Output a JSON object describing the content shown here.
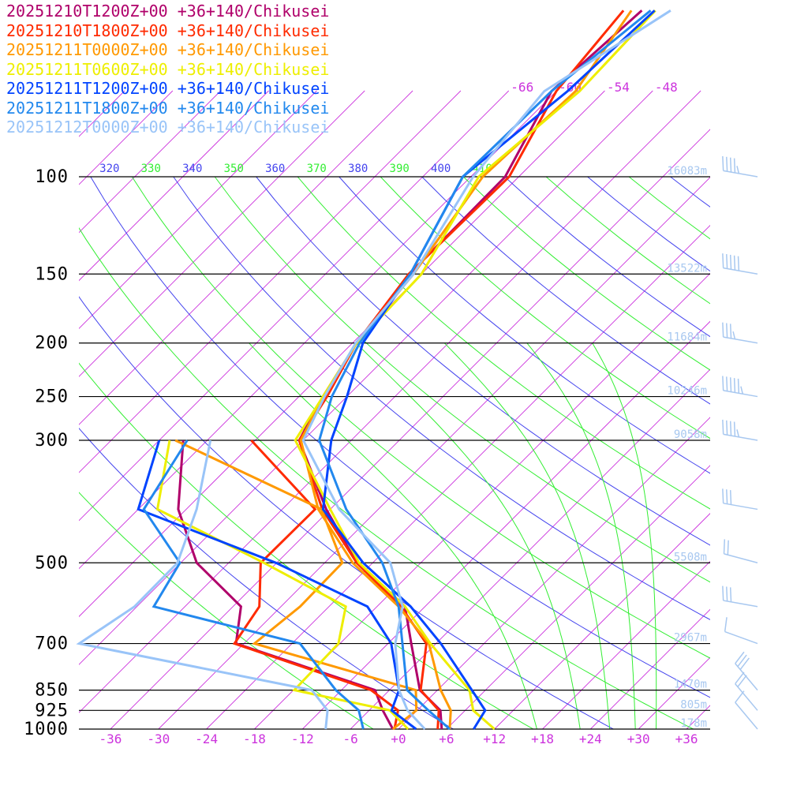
{
  "chart_data": {
    "type": "line",
    "subtype": "skew-T log-p sounding",
    "pressure_levels_hpa": [
      1000,
      925,
      850,
      700,
      600,
      500,
      400,
      300,
      250,
      200,
      150,
      100,
      70,
      50
    ],
    "y_axis_ticks": [
      "100",
      "150",
      "200",
      "250",
      "300",
      "500",
      "700",
      "850",
      "925",
      "1000"
    ],
    "y_axis_tick_values": [
      100,
      150,
      200,
      250,
      300,
      500,
      700,
      850,
      925,
      1000
    ],
    "x_axis_ticks": [
      "-36",
      "-30",
      "-24",
      "-18",
      "-12",
      "-6",
      "+0",
      "+6",
      "+12",
      "+18",
      "+24",
      "+30",
      "+36"
    ],
    "x_axis_tick_values": [
      -36,
      -30,
      -24,
      -18,
      -12,
      -6,
      0,
      6,
      12,
      18,
      24,
      30,
      36
    ],
    "top_isotherm_labels": [
      "-66",
      "-60",
      "-54",
      "-48"
    ],
    "top_isotherm_values": [
      -66,
      -60,
      -54,
      -48
    ],
    "theta_labels": [
      "320",
      "330",
      "340",
      "350",
      "360",
      "370",
      "380",
      "390",
      "400",
      "410"
    ],
    "theta_values": [
      320,
      330,
      340,
      350,
      360,
      370,
      380,
      390,
      400,
      410
    ],
    "heights": [
      {
        "p": 100,
        "label": "16083m"
      },
      {
        "p": 150,
        "label": "13522m"
      },
      {
        "p": 200,
        "label": "11684m"
      },
      {
        "p": 250,
        "label": "10246m"
      },
      {
        "p": 300,
        "label": "9058m"
      },
      {
        "p": 500,
        "label": "5508m"
      },
      {
        "p": 700,
        "label": "2967m"
      },
      {
        "p": 850,
        "label": "1470m"
      },
      {
        "p": 925,
        "label": "805m"
      },
      {
        "p": 1000,
        "label": "178m"
      }
    ],
    "winds": [
      {
        "p": 100,
        "dir": 280,
        "kt": 45
      },
      {
        "p": 150,
        "dir": 280,
        "kt": 50
      },
      {
        "p": 200,
        "dir": 280,
        "kt": 35
      },
      {
        "p": 250,
        "dir": 280,
        "kt": 55
      },
      {
        "p": 300,
        "dir": 280,
        "kt": 45
      },
      {
        "p": 400,
        "dir": 280,
        "kt": 30
      },
      {
        "p": 500,
        "dir": 285,
        "kt": 20
      },
      {
        "p": 600,
        "dir": 280,
        "kt": 30
      },
      {
        "p": 700,
        "dir": 290,
        "kt": 10
      },
      {
        "p": 850,
        "dir": 320,
        "kt": 30
      },
      {
        "p": 925,
        "dir": 320,
        "kt": 20
      },
      {
        "p": 1000,
        "dir": 320,
        "kt": 10
      }
    ],
    "colors": {
      "isotherm": "#cc33dd",
      "theta_a": "#4444ee",
      "theta_b": "#33ee33",
      "moist": "#33ee33",
      "isobar": "#000000",
      "height_label": "#a8c8f0",
      "wind": "#a8c8f0"
    },
    "series": [
      {
        "name": "20251210T1200Z+00 +36+140/Chikusei",
        "color": "#b0006a",
        "temperature": [
          5.4,
          2.9,
          -2.2,
          -9.1,
          -14.5,
          -26,
          -36.5,
          -48.5,
          -51,
          -53.5,
          -55.5,
          -55.7,
          -60.6,
          -59.4
        ],
        "dewpoint": [
          -0.7,
          -4.3,
          -7.8,
          -31,
          -35,
          -46,
          -55,
          -63
        ]
      },
      {
        "name": "20251210T1800Z+00 +36+140/Chikusei",
        "color": "#ff2a00",
        "temperature": [
          4.9,
          2.7,
          -2.1,
          -7.2,
          -15,
          -26,
          -37,
          -48.5,
          -50.5,
          -53.5,
          -55.6,
          -55.2,
          -60,
          -61.7
        ],
        "dewpoint": [
          -0.5,
          -2.4,
          -8.3,
          -31.2,
          -32.7,
          -38,
          -37.9,
          -54.5
        ]
      },
      {
        "name": "20251211T0000Z+00 +36+140/Chikusei",
        "color": "#ff9900",
        "temperature": [
          6.4,
          4.2,
          0.4,
          -6.9,
          -15.3,
          -26.5,
          -37.5,
          -48.3,
          -51,
          -53.5,
          -55,
          -58.5,
          -57.6,
          -60.7
        ],
        "dewpoint": [
          -0.7,
          -0.1,
          -2.7,
          -28.7,
          -27.6,
          -27.8,
          -37.1,
          -64
        ]
      },
      {
        "name": "20251211T0600Z+00 +36+140/Chikusei",
        "color": "#eeee00",
        "temperature": [
          12,
          7,
          4,
          -6.7,
          -14.5,
          -25.7,
          -36,
          -49,
          -51,
          -53.5,
          -54,
          -59,
          -57.1,
          -57.7
        ],
        "dewpoint": [
          1.2,
          -3.4,
          -17.9,
          -18.2,
          -21.9,
          -37.6,
          -57.6,
          -64.7
        ]
      },
      {
        "name": "20251211T1200Z+00 +36+140/Chikusei",
        "color": "#0044ff",
        "temperature": [
          9.4,
          8.5,
          4.3,
          -5.4,
          -13.8,
          -25.2,
          -36.9,
          -44.5,
          -48,
          -52.7,
          -55.4,
          -61,
          -58.6,
          -57.8
        ],
        "dewpoint": [
          2.2,
          -3.2,
          -4.8,
          -11.6,
          -19.2,
          -36.1,
          -60,
          -66
        ]
      },
      {
        "name": "20251211T1800Z+00 +36+140/Chikusei",
        "color": "#2288ee",
        "temperature": [
          6.4,
          1.4,
          -3.8,
          -10.2,
          -15.3,
          -22.8,
          -34,
          -46,
          -49.9,
          -53.1,
          -55.4,
          -61,
          -60.6,
          -58.3
        ],
        "dewpoint": [
          -4.4,
          -7.3,
          -12.7,
          -23,
          -45.9,
          -48.1,
          -59.3,
          -62.5
        ]
      },
      {
        "name": "20251212T0000Z+00 +36+140/Chikusei",
        "color": "#99c4f8",
        "temperature": [
          3.3,
          -1.2,
          -4.8,
          -11.1,
          -14.8,
          -21.8,
          -34.9,
          -48,
          -50.8,
          -53.6,
          -55,
          -59.7,
          -61.5,
          -55.8
        ],
        "dewpoint": [
          -9.1,
          -11.2,
          -15.7,
          -50.6,
          -48.3,
          -48.4,
          -52.7,
          -59.6
        ]
      }
    ]
  }
}
